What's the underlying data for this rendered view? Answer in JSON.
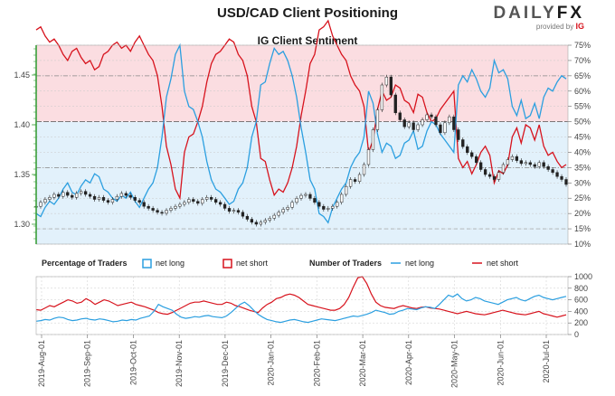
{
  "title": "USD/CAD Client Positioning",
  "subtitle": "IG Client Sentiment",
  "logo": {
    "main_a": "DAILY",
    "main_b": "FX",
    "provided": "provided by",
    "brand": "IG"
  },
  "colors": {
    "long": "#2b9fe0",
    "short": "#d7131d",
    "price": "#222222",
    "red_zone": "#fbdde1",
    "blue_zone": "#e2f1fb",
    "panel_border": "#aaaaaa"
  },
  "legend": {
    "pct_heading": "Percentage of Traders",
    "num_heading": "Number of Traders",
    "net_long": "net long",
    "net_short": "net short"
  },
  "chart_data": [
    {
      "type": "line",
      "title": "IG Client Sentiment",
      "description_note": "price candles on left axis, net long / net short percentage on right axis",
      "left_axis": {
        "ticks": [
          "1.45",
          "1.40",
          "1.35",
          "1.30"
        ],
        "ylim": [
          1.28,
          1.48
        ]
      },
      "right_axis": {
        "ticks": [
          "75%",
          "70%",
          "65%",
          "60%",
          "55%",
          "50%",
          "45%",
          "40%",
          "35%",
          "30%",
          "25%",
          "20%",
          "15%",
          "10%"
        ],
        "ylim": [
          10,
          75
        ]
      },
      "series": [
        {
          "name": "net long",
          "values": [
            20,
            19,
            22,
            24,
            23,
            25,
            28,
            30,
            27,
            26,
            29,
            31,
            30,
            33,
            32,
            28,
            27,
            25,
            24,
            26,
            25,
            27,
            24,
            22,
            25,
            28,
            30,
            35,
            45,
            58,
            64,
            72,
            75,
            60,
            55,
            54,
            50,
            45,
            37,
            31,
            28,
            27,
            25,
            23,
            24,
            28,
            30,
            35,
            45,
            50,
            62,
            63,
            69,
            74,
            72,
            73,
            70,
            65,
            58,
            48,
            40,
            31,
            28,
            20,
            19,
            17,
            22,
            25,
            28,
            30,
            35,
            38,
            40,
            45,
            60,
            56,
            46,
            40,
            43,
            42,
            38,
            39,
            43,
            44,
            47,
            41,
            42,
            47,
            50,
            49,
            46,
            44,
            42,
            40,
            62,
            65,
            63,
            67,
            64,
            60,
            58,
            61,
            70,
            66,
            67,
            64,
            55,
            52,
            57,
            51,
            52,
            56,
            51,
            58,
            61,
            60,
            63,
            65,
            64
          ]
        },
        {
          "name": "net short",
          "values": [
            80,
            81,
            78,
            76,
            77,
            75,
            72,
            70,
            73,
            74,
            71,
            69,
            70,
            67,
            68,
            72,
            73,
            75,
            76,
            74,
            75,
            73,
            76,
            78,
            75,
            72,
            70,
            65,
            55,
            42,
            36,
            28,
            25,
            40,
            45,
            46,
            50,
            55,
            63,
            69,
            72,
            73,
            75,
            77,
            76,
            72,
            70,
            65,
            55,
            50,
            38,
            37,
            31,
            26,
            28,
            27,
            30,
            35,
            42,
            52,
            60,
            69,
            72,
            80,
            81,
            83,
            78,
            75,
            72,
            70,
            65,
            62,
            60,
            55,
            40,
            44,
            54,
            60,
            57,
            58,
            62,
            61,
            57,
            56,
            53,
            59,
            58,
            53,
            50,
            51,
            54,
            56,
            58,
            60,
            38,
            35,
            37,
            33,
            36,
            40,
            42,
            39,
            30,
            34,
            33,
            36,
            45,
            48,
            43,
            49,
            48,
            44,
            49,
            42,
            39,
            40,
            37,
            35,
            36
          ]
        },
        {
          "name": "USD/CAD price",
          "values": [
            1.318,
            1.322,
            1.325,
            1.327,
            1.33,
            1.328,
            1.332,
            1.329,
            1.327,
            1.331,
            1.333,
            1.33,
            1.328,
            1.325,
            1.327,
            1.324,
            1.322,
            1.325,
            1.328,
            1.331,
            1.329,
            1.327,
            1.324,
            1.322,
            1.318,
            1.316,
            1.314,
            1.312,
            1.311,
            1.314,
            1.316,
            1.318,
            1.32,
            1.322,
            1.325,
            1.323,
            1.321,
            1.325,
            1.327,
            1.325,
            1.322,
            1.32,
            1.316,
            1.313,
            1.314,
            1.312,
            1.308,
            1.305,
            1.302,
            1.3,
            1.302,
            1.304,
            1.306,
            1.309,
            1.312,
            1.315,
            1.317,
            1.322,
            1.326,
            1.329,
            1.33,
            1.326,
            1.322,
            1.318,
            1.315,
            1.316,
            1.318,
            1.322,
            1.33,
            1.338,
            1.345,
            1.343,
            1.35,
            1.36,
            1.375,
            1.395,
            1.415,
            1.44,
            1.448,
            1.43,
            1.412,
            1.405,
            1.398,
            1.402,
            1.395,
            1.4,
            1.405,
            1.41,
            1.408,
            1.4,
            1.392,
            1.402,
            1.408,
            1.395,
            1.385,
            1.378,
            1.372,
            1.368,
            1.362,
            1.355,
            1.35,
            1.348,
            1.345,
            1.352,
            1.36,
            1.365,
            1.368,
            1.364,
            1.361,
            1.362,
            1.36,
            1.358,
            1.362,
            1.358,
            1.355,
            1.352,
            1.348,
            1.345,
            1.34
          ]
        }
      ]
    },
    {
      "type": "line",
      "title": "Number of Traders",
      "x_ticks": [
        "2019-Aug-01",
        "2019-Sep-01",
        "2019-Oct-01",
        "2019-Nov-01",
        "2019-Dec-01",
        "2020-Jan-01",
        "2020-Feb-01",
        "2020-Mar-01",
        "2020-Apr-01",
        "2020-May-01",
        "2020-Jun-01",
        "2020-Jul-01"
      ],
      "y_ticks": [
        "1000",
        "800",
        "600",
        "400",
        "200",
        "0"
      ],
      "ylim": [
        0,
        1000
      ],
      "series": [
        {
          "name": "net long",
          "values": [
            230,
            240,
            260,
            250,
            280,
            300,
            290,
            260,
            240,
            250,
            270,
            280,
            260,
            250,
            270,
            260,
            240,
            220,
            230,
            250,
            240,
            260,
            250,
            280,
            300,
            320,
            400,
            520,
            480,
            450,
            420,
            350,
            300,
            280,
            290,
            310,
            300,
            320,
            330,
            310,
            300,
            290,
            320,
            380,
            450,
            520,
            560,
            500,
            420,
            350,
            300,
            260,
            240,
            220,
            210,
            230,
            250,
            260,
            240,
            220,
            210,
            230,
            250,
            270,
            260,
            250,
            240,
            260,
            280,
            300,
            320,
            310,
            330,
            350,
            380,
            420,
            400,
            380,
            350,
            360,
            400,
            420,
            450,
            440,
            430,
            460,
            480,
            470,
            450,
            520,
            600,
            680,
            650,
            700,
            620,
            580,
            600,
            640,
            620,
            580,
            560,
            540,
            520,
            560,
            600,
            620,
            640,
            600,
            580,
            620,
            660,
            680,
            640,
            620,
            600,
            620,
            640,
            660
          ]
        },
        {
          "name": "net short",
          "values": [
            430,
            420,
            460,
            500,
            480,
            520,
            560,
            600,
            580,
            540,
            560,
            620,
            580,
            520,
            560,
            600,
            580,
            540,
            500,
            520,
            540,
            560,
            520,
            500,
            480,
            450,
            420,
            380,
            360,
            350,
            380,
            420,
            460,
            500,
            540,
            560,
            560,
            580,
            560,
            540,
            520,
            520,
            560,
            540,
            500,
            480,
            450,
            420,
            400,
            380,
            460,
            520,
            560,
            620,
            640,
            680,
            700,
            680,
            640,
            580,
            520,
            500,
            480,
            460,
            440,
            420,
            420,
            450,
            520,
            640,
            820,
            980,
            1000,
            880,
            700,
            560,
            500,
            470,
            460,
            450,
            480,
            500,
            480,
            460,
            450,
            470,
            480,
            460,
            450,
            440,
            420,
            400,
            380,
            360,
            380,
            400,
            380,
            360,
            350,
            340,
            360,
            380,
            400,
            420,
            400,
            380,
            360,
            350,
            340,
            360,
            380,
            400,
            360,
            340,
            320,
            300,
            320,
            340
          ]
        }
      ]
    }
  ]
}
